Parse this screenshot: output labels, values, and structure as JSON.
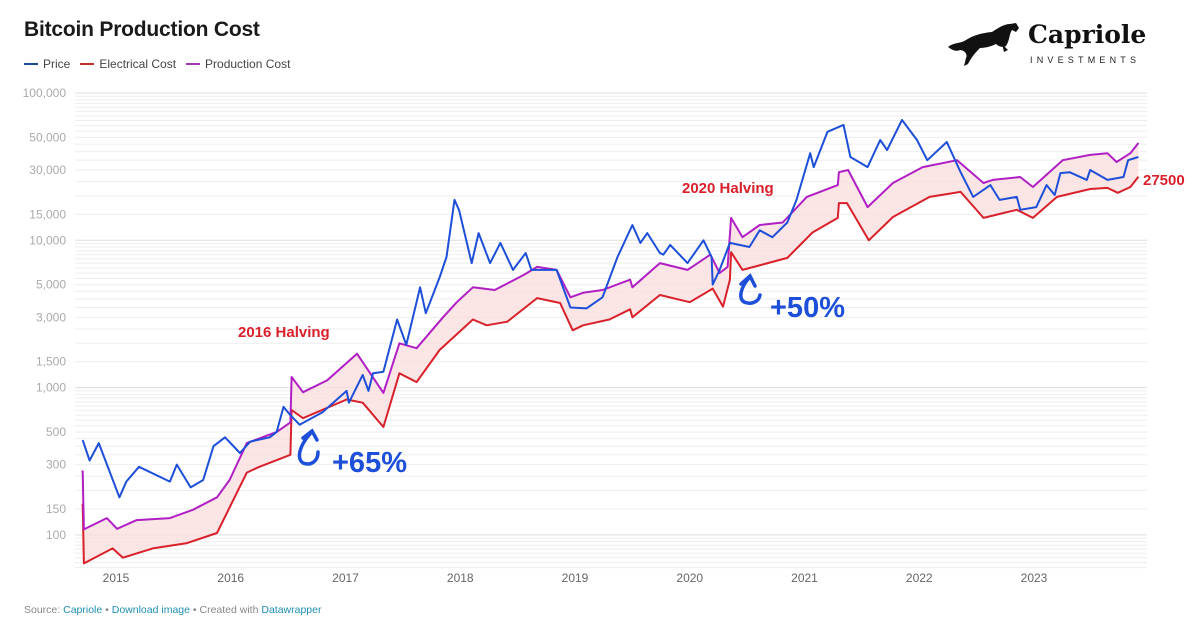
{
  "header": {
    "title": "Bitcoin Production Cost"
  },
  "logo": {
    "name": "Capriole",
    "subtitle": "INVESTMENTS"
  },
  "footer": {
    "source_label": "Source:",
    "source_link": "Capriole",
    "sep1": "•",
    "download_link": "Download image",
    "sep2": "• Created with",
    "created_link": "Datawrapper"
  },
  "annotations": {
    "halving_2016": "2016 Halving",
    "gain_2016": "+65%",
    "halving_2020": "2020 Halving",
    "gain_2020": "+50%",
    "latest_cost": "27500"
  },
  "chart_data": {
    "type": "line",
    "title": "Bitcoin Production Cost",
    "yscale": "log",
    "ylim": [
      60,
      100000
    ],
    "xlim": [
      2014.7,
      2023.95
    ],
    "grid": true,
    "legend": "top-left",
    "y_ticks": [
      "100,000",
      "50,000",
      "30,000",
      "15,000",
      "10,000",
      "5,000",
      "3,000",
      "1,500",
      "1,000",
      "500",
      "300",
      "150",
      "100"
    ],
    "y_tick_values": [
      100000,
      50000,
      30000,
      15000,
      10000,
      5000,
      3000,
      1500,
      1000,
      500,
      300,
      150,
      100
    ],
    "x_ticks": [
      "2015",
      "2016",
      "2017",
      "2018",
      "2019",
      "2020",
      "2021",
      "2022",
      "2023"
    ],
    "series": [
      {
        "name": "Price",
        "color": "#1d4fd8",
        "x": [
          2014.71,
          2014.77,
          2014.85,
          2015.03,
          2015.09,
          2015.2,
          2015.47,
          2015.53,
          2015.65,
          2015.76,
          2015.85,
          2015.95,
          2016.08,
          2016.17,
          2016.34,
          2016.4,
          2016.46,
          2016.52,
          2016.6,
          2016.8,
          2017.01,
          2017.03,
          2017.15,
          2017.2,
          2017.24,
          2017.33,
          2017.45,
          2017.53,
          2017.65,
          2017.7,
          2017.82,
          2017.88,
          2017.95,
          2017.99,
          2018.1,
          2018.16,
          2018.26,
          2018.35,
          2018.46,
          2018.57,
          2018.62,
          2018.84,
          2018.96,
          2019.1,
          2019.24,
          2019.37,
          2019.5,
          2019.57,
          2019.63,
          2019.74,
          2019.77,
          2019.83,
          2019.98,
          2020.12,
          2020.19,
          2020.2,
          2020.26,
          2020.35,
          2020.52,
          2020.61,
          2020.72,
          2020.85,
          2020.93,
          2021.05,
          2021.08,
          2021.2,
          2021.34,
          2021.4,
          2021.55,
          2021.66,
          2021.72,
          2021.85,
          2021.98,
          2022.07,
          2022.24,
          2022.36,
          2022.47,
          2022.62,
          2022.7,
          2022.85,
          2022.88,
          2023.02,
          2023.11,
          2023.18,
          2023.23,
          2023.31,
          2023.46,
          2023.49,
          2023.64,
          2023.78,
          2023.82,
          2023.91
        ],
        "values": [
          440,
          320,
          420,
          180,
          230,
          290,
          230,
          300,
          210,
          236,
          400,
          460,
          360,
          430,
          460,
          500,
          740,
          650,
          560,
          680,
          950,
          790,
          1220,
          950,
          1250,
          1280,
          2900,
          1950,
          4800,
          3200,
          5600,
          7700,
          18800,
          16000,
          7000,
          11200,
          7000,
          9600,
          6300,
          8200,
          6300,
          6300,
          3500,
          3450,
          4100,
          7700,
          12700,
          9600,
          11200,
          8200,
          8000,
          9300,
          7000,
          10000,
          7700,
          5000,
          6300,
          9600,
          9000,
          11700,
          10500,
          13200,
          18800,
          39000,
          31400,
          54500,
          60700,
          36800,
          31400,
          48000,
          41000,
          65600,
          48000,
          35000,
          46500,
          29000,
          19700,
          23700,
          18800,
          19700,
          16100,
          16800,
          23700,
          20300,
          28600,
          29000,
          25700,
          30000,
          25700,
          26900,
          35000,
          36800
        ]
      },
      {
        "name": "Electrical Cost",
        "color": "#d8212b",
        "x": [
          2014.7,
          2014.71,
          2014.72,
          2014.97,
          2015.06,
          2015.32,
          2015.62,
          2015.88,
          2016.14,
          2016.25,
          2016.52,
          2016.53,
          2016.63,
          2017.01,
          2017.15,
          2017.33,
          2017.47,
          2017.62,
          2017.82,
          2018.11,
          2018.23,
          2018.41,
          2018.67,
          2018.87,
          2018.98,
          2019.07,
          2019.3,
          2019.48,
          2019.5,
          2019.74,
          2020.0,
          2020.2,
          2020.29,
          2020.35,
          2020.36,
          2020.46,
          2020.85,
          2021.07,
          2021.29,
          2021.3,
          2021.37,
          2021.56,
          2021.77,
          2022.09,
          2022.36,
          2022.56,
          2022.73,
          2022.85,
          2022.99,
          2023.2,
          2023.49,
          2023.64,
          2023.73,
          2023.84,
          2023.91
        ],
        "values": [
          160,
          160,
          64,
          81,
          70,
          81,
          88,
          103,
          265,
          290,
          350,
          705,
          620,
          830,
          790,
          540,
          1250,
          1090,
          1800,
          2900,
          2650,
          2800,
          4050,
          3750,
          2450,
          2650,
          2900,
          3400,
          3000,
          4250,
          3800,
          4700,
          3550,
          5400,
          8300,
          6300,
          7600,
          11300,
          14200,
          17900,
          17900,
          10000,
          14400,
          19700,
          21300,
          14200,
          15300,
          16100,
          14200,
          19700,
          22300,
          22700,
          21000,
          23000,
          27000
        ]
      },
      {
        "name": "Production Cost",
        "color": "#b01fc4",
        "x": [
          2014.7,
          2014.71,
          2014.72,
          2014.92,
          2015.01,
          2015.18,
          2015.47,
          2015.67,
          2015.88,
          2015.99,
          2016.14,
          2016.4,
          2016.52,
          2016.53,
          2016.63,
          2016.84,
          2017.1,
          2017.33,
          2017.47,
          2017.62,
          2017.85,
          2017.97,
          2018.11,
          2018.3,
          2018.55,
          2018.67,
          2018.84,
          2018.96,
          2019.07,
          2019.24,
          2019.48,
          2019.5,
          2019.74,
          2019.98,
          2020.18,
          2020.26,
          2020.33,
          2020.36,
          2020.46,
          2020.61,
          2020.81,
          2021.02,
          2021.29,
          2021.3,
          2021.38,
          2021.55,
          2021.77,
          2022.03,
          2022.33,
          2022.56,
          2022.64,
          2022.88,
          2022.99,
          2023.25,
          2023.49,
          2023.64,
          2023.72,
          2023.84,
          2023.91
        ],
        "values": [
          270,
          270,
          109,
          130,
          110,
          126,
          130,
          148,
          180,
          236,
          420,
          500,
          580,
          1180,
          930,
          1120,
          1700,
          920,
          2000,
          1850,
          3000,
          3800,
          4800,
          4600,
          5800,
          6600,
          6300,
          4100,
          4400,
          4600,
          5400,
          4800,
          7000,
          6300,
          8000,
          6000,
          6600,
          14200,
          10500,
          12700,
          13200,
          19700,
          23700,
          29000,
          30000,
          16800,
          24500,
          31400,
          35000,
          24500,
          25700,
          26900,
          23000,
          35000,
          38000,
          39000,
          34000,
          39000,
          45800
        ]
      }
    ]
  }
}
